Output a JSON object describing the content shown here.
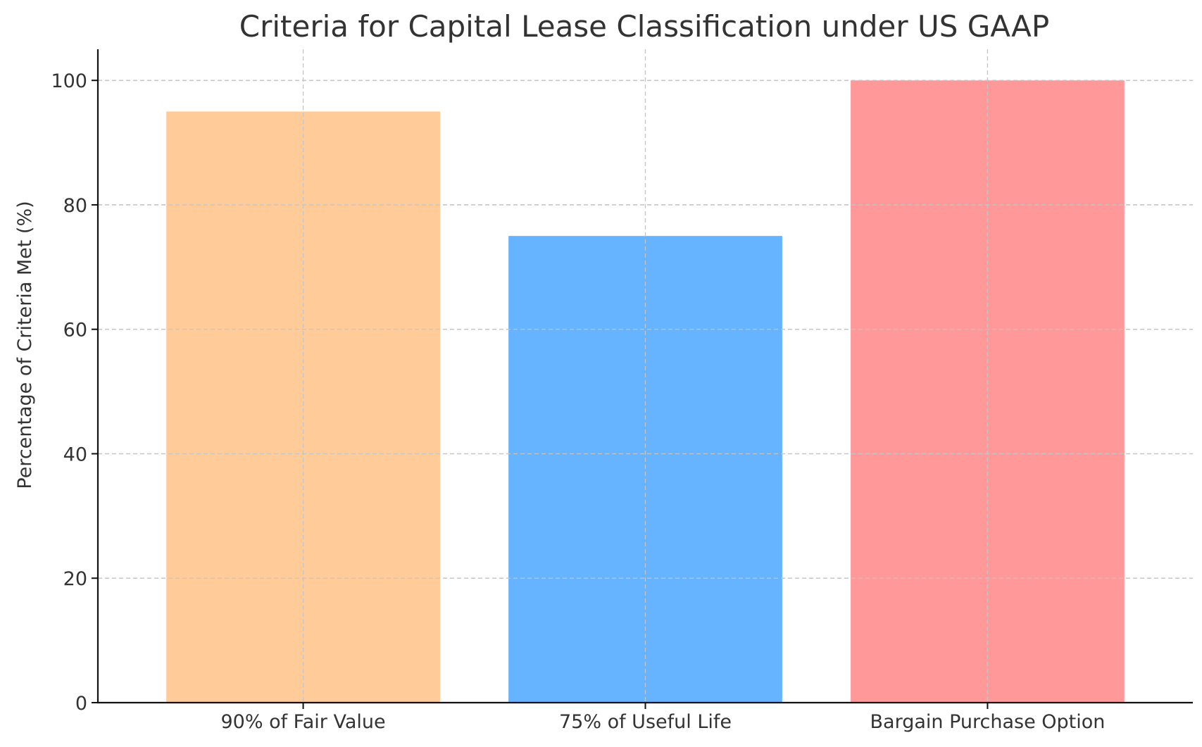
{
  "chart_data": {
    "type": "bar",
    "title": "Criteria for Capital Lease Classification under US GAAP",
    "xlabel": "",
    "ylabel": "Percentage of Criteria Met (%)",
    "categories": [
      "90% of Fair Value",
      "75% of Useful Life",
      "Bargain Purchase Option"
    ],
    "values": [
      95,
      75,
      100
    ],
    "colors": [
      "#FFCC99",
      "#66B3FF",
      "#FF9999"
    ],
    "ylim": [
      0,
      105
    ],
    "yticks": [
      0,
      20,
      40,
      60,
      80,
      100
    ],
    "ytick_labels": [
      "0",
      "20",
      "40",
      "60",
      "80",
      "100"
    ],
    "grid": true,
    "legend": "none"
  }
}
